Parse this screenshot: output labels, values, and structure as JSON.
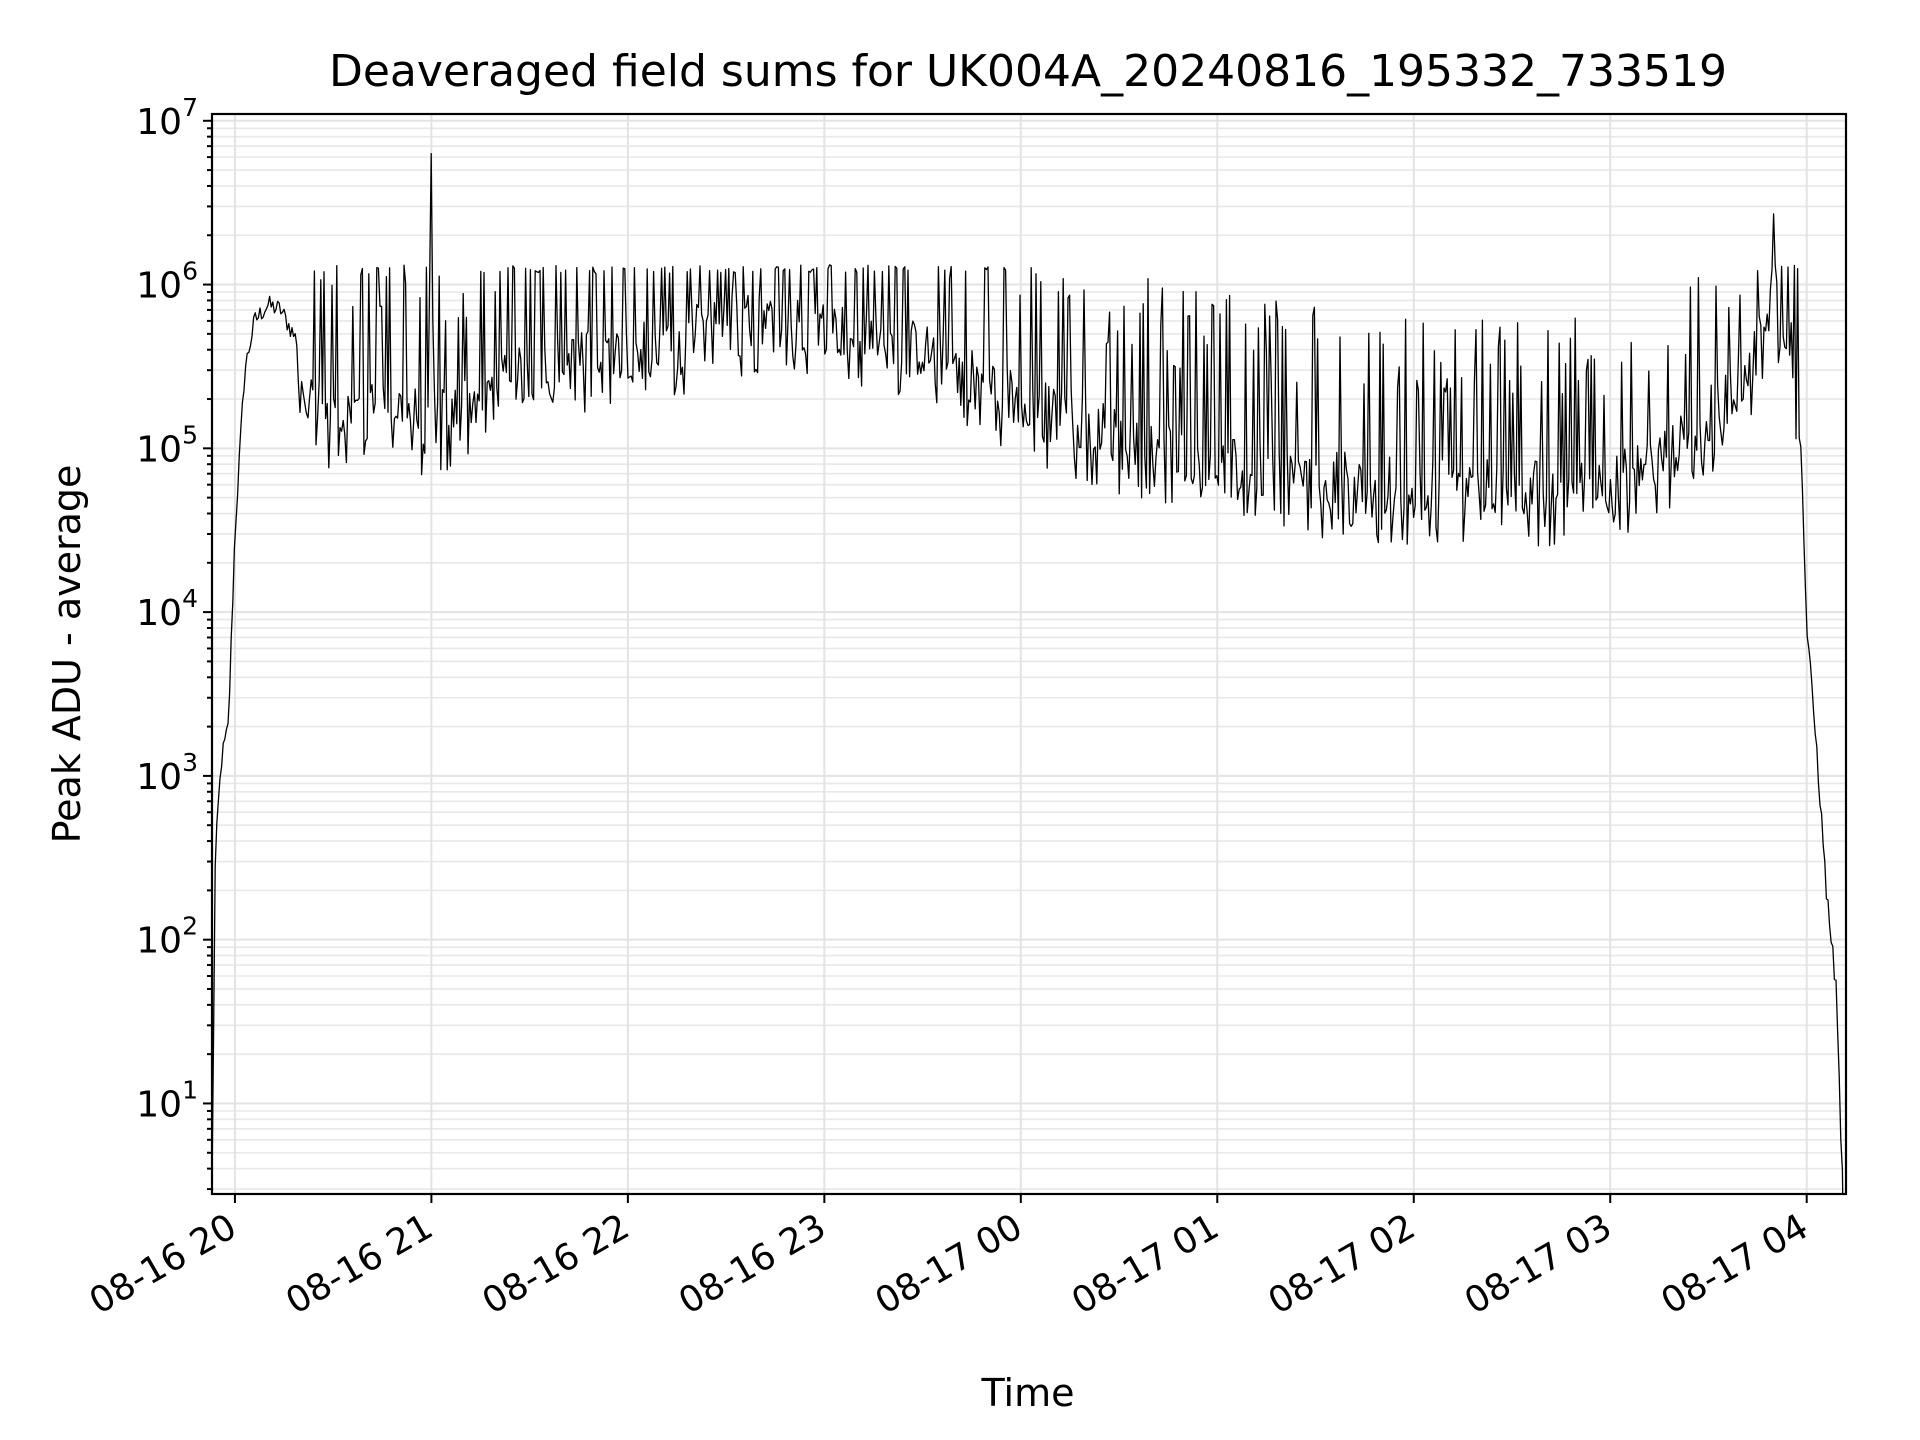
{
  "chart_data": {
    "type": "line",
    "title": "Deaveraged field sums for UK004A_20240816_195332_733519",
    "xlabel": "Time",
    "ylabel": "Peak ADU - average",
    "yscale": "log",
    "ylim": [
      2.8,
      11000000
    ],
    "xlim": [
      "2024-08-16 19:53",
      "2024-08-17 04:12"
    ],
    "grid": true,
    "line_color": "#000000",
    "y_ticks": [
      {
        "base": "10",
        "exp": "1",
        "value": 10
      },
      {
        "base": "10",
        "exp": "2",
        "value": 100
      },
      {
        "base": "10",
        "exp": "3",
        "value": 1000
      },
      {
        "base": "10",
        "exp": "4",
        "value": 10000
      },
      {
        "base": "10",
        "exp": "5",
        "value": 100000
      },
      {
        "base": "10",
        "exp": "6",
        "value": 1000000
      },
      {
        "base": "10",
        "exp": "7",
        "value": 10000000
      }
    ],
    "x_ticks": [
      {
        "label": "08-16 20",
        "time": "2024-08-16 20:00"
      },
      {
        "label": "08-16 21",
        "time": "2024-08-16 21:00"
      },
      {
        "label": "08-16 22",
        "time": "2024-08-16 22:00"
      },
      {
        "label": "08-16 23",
        "time": "2024-08-16 23:00"
      },
      {
        "label": "08-17 00",
        "time": "2024-08-17 00:00"
      },
      {
        "label": "08-17 01",
        "time": "2024-08-17 01:00"
      },
      {
        "label": "08-17 02",
        "time": "2024-08-17 02:00"
      },
      {
        "label": "08-17 03",
        "time": "2024-08-17 03:00"
      },
      {
        "label": "08-17 04",
        "time": "2024-08-17 04:00"
      }
    ],
    "series": [
      {
        "x": [
          "2024-08-16 19:53",
          "2024-08-16 19:54",
          "2024-08-16 19:55",
          "2024-08-16 19:56",
          "2024-08-16 19:58",
          "2024-08-16 20:00",
          "2024-08-16 20:03",
          "2024-08-16 20:06",
          "2024-08-16 20:10",
          "2024-08-16 20:14",
          "2024-08-16 20:19",
          "2024-08-16 20:23",
          "2024-08-16 20:30",
          "2024-08-16 20:45",
          "2024-08-16 20:59",
          "2024-08-16 21:00",
          "2024-08-16 21:01",
          "2024-08-16 21:30",
          "2024-08-16 22:00",
          "2024-08-16 22:20",
          "2024-08-16 22:30",
          "2024-08-16 23:00",
          "2024-08-16 23:30",
          "2024-08-17 00:00",
          "2024-08-17 00:30",
          "2024-08-17 01:00",
          "2024-08-17 01:30",
          "2024-08-17 02:00",
          "2024-08-17 02:30",
          "2024-08-17 03:00",
          "2024-08-17 03:20",
          "2024-08-17 03:40",
          "2024-08-17 03:49",
          "2024-08-17 03:50",
          "2024-08-17 03:51",
          "2024-08-17 03:55",
          "2024-08-17 03:58",
          "2024-08-17 04:00",
          "2024-08-17 04:03",
          "2024-08-17 04:06",
          "2024-08-17 04:09",
          "2024-08-17 04:11"
        ],
        "y": [
          3,
          300,
          700,
          1300,
          2000,
          30000,
          300000,
          600000,
          750000,
          700000,
          450000,
          200000,
          150000,
          200000,
          150000,
          6300000,
          150000,
          300000,
          400000,
          500000,
          600000,
          550000,
          400000,
          200000,
          120000,
          80000,
          65000,
          60000,
          58000,
          60000,
          100000,
          250000,
          700000,
          2700000,
          700000,
          500000,
          150000,
          8000,
          1500,
          200,
          50,
          3
        ]
      }
    ]
  }
}
